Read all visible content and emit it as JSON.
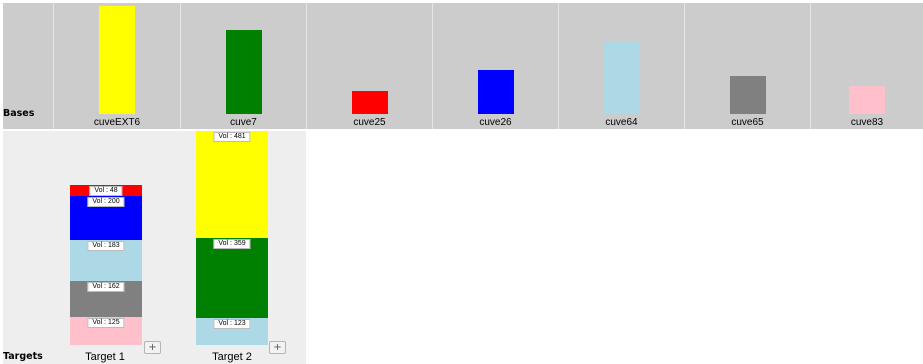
{
  "bases": {
    "row_label": "Bases",
    "items": [
      {
        "label": "cuveEXT6",
        "color": "#ffff00",
        "fill_fraction": 1.0
      },
      {
        "label": "cuve7",
        "color": "#008000",
        "fill_fraction": 0.78
      },
      {
        "label": "cuve25",
        "color": "#ff0000",
        "fill_fraction": 0.21
      },
      {
        "label": "cuve26",
        "color": "#0000ff",
        "fill_fraction": 0.41
      },
      {
        "label": "cuve64",
        "color": "#add8e6",
        "fill_fraction": 0.67
      },
      {
        "label": "cuve65",
        "color": "#808080",
        "fill_fraction": 0.35
      },
      {
        "label": "cuve83",
        "color": "#ffc0cb",
        "fill_fraction": 0.26
      }
    ]
  },
  "targets": {
    "row_label": "Targets",
    "add_button_label": "+",
    "items": [
      {
        "label": "Target 1",
        "segments": [
          {
            "vol": "Vol : 48",
            "volume": 48,
            "color": "#ff0000"
          },
          {
            "vol": "Vol : 200",
            "volume": 200,
            "color": "#0000ff"
          },
          {
            "vol": "Vol : 183",
            "volume": 183,
            "color": "#add8e6"
          },
          {
            "vol": "Vol : 162",
            "volume": 162,
            "color": "#808080"
          },
          {
            "vol": "Vol : 125",
            "volume": 125,
            "color": "#ffc0cb"
          }
        ]
      },
      {
        "label": "Target 2",
        "segments": [
          {
            "vol": "Vol : 481",
            "volume": 481,
            "color": "#ffff00"
          },
          {
            "vol": "Vol : 359",
            "volume": 359,
            "color": "#008000"
          },
          {
            "vol": "Vol : 123",
            "volume": 123,
            "color": "#add8e6"
          }
        ]
      }
    ]
  }
}
